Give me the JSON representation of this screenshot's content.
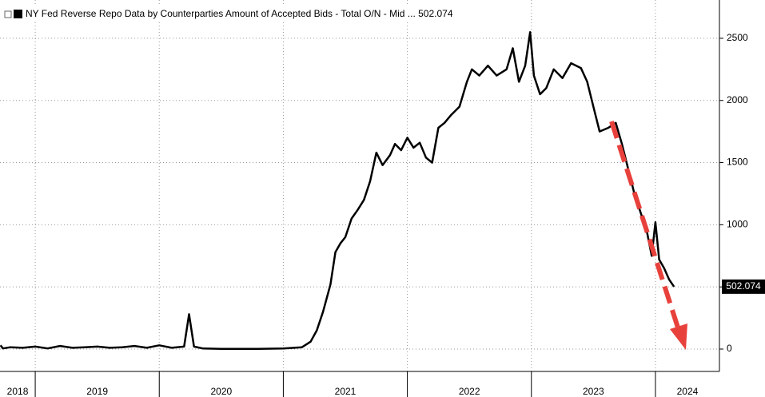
{
  "chart_data": {
    "type": "line",
    "series": [
      {
        "name": "NY Fed Reverse Repo Data by Counterparties Amount of Accepted Bids - Total O/N - Mid ... 502.074",
        "color": "#000000",
        "x": [
          2018.72,
          2018.74,
          2018.8,
          2018.9,
          2019.0,
          2019.1,
          2019.2,
          2019.3,
          2019.4,
          2019.5,
          2019.6,
          2019.7,
          2019.8,
          2019.9,
          2020.0,
          2020.1,
          2020.2,
          2020.24,
          2020.28,
          2020.35,
          2020.5,
          2020.8,
          2021.0,
          2021.15,
          2021.22,
          2021.27,
          2021.32,
          2021.38,
          2021.42,
          2021.46,
          2021.5,
          2021.55,
          2021.6,
          2021.65,
          2021.7,
          2021.75,
          2021.8,
          2021.86,
          2021.9,
          2021.95,
          2022.0,
          2022.05,
          2022.1,
          2022.15,
          2022.2,
          2022.25,
          2022.3,
          2022.35,
          2022.42,
          2022.48,
          2022.52,
          2022.58,
          2022.65,
          2022.72,
          2022.8,
          2022.85,
          2022.9,
          2022.95,
          2022.99,
          2023.02,
          2023.07,
          2023.12,
          2023.18,
          2023.25,
          2023.32,
          2023.4,
          2023.45,
          2023.5,
          2023.55,
          2023.62,
          2023.68,
          2023.73,
          2023.78,
          2023.83,
          2023.88,
          2023.93,
          2023.97,
          2024.0,
          2024.03,
          2024.07,
          2024.11,
          2024.15
        ],
        "values": [
          30,
          5,
          15,
          10,
          20,
          5,
          25,
          10,
          15,
          20,
          10,
          15,
          25,
          10,
          30,
          10,
          20,
          280,
          20,
          5,
          2,
          2,
          5,
          15,
          60,
          150,
          300,
          520,
          780,
          850,
          900,
          1050,
          1120,
          1200,
          1350,
          1580,
          1480,
          1560,
          1650,
          1600,
          1700,
          1620,
          1660,
          1540,
          1500,
          1780,
          1820,
          1880,
          1950,
          2150,
          2250,
          2200,
          2280,
          2200,
          2250,
          2420,
          2150,
          2280,
          2550,
          2200,
          2050,
          2100,
          2250,
          2180,
          2300,
          2260,
          2150,
          1950,
          1750,
          1780,
          1820,
          1650,
          1450,
          1250,
          1100,
          950,
          750,
          1020,
          720,
          650,
          560,
          502.074
        ]
      }
    ],
    "xlim": [
      2018.716,
      2024.516
    ],
    "xticks": [
      {
        "value": 2018.858,
        "label": "2018"
      },
      {
        "value": 2019.5,
        "label": "2019"
      },
      {
        "value": 2020.5,
        "label": "2020"
      },
      {
        "value": 2021.5,
        "label": "2021"
      },
      {
        "value": 2022.5,
        "label": "2022"
      },
      {
        "value": 2023.5,
        "label": "2023"
      },
      {
        "value": 2024.258,
        "label": "2024"
      }
    ],
    "xgrid": [
      2019,
      2020,
      2021,
      2022,
      2023,
      2024
    ],
    "ylim": [
      -180,
      2808
    ],
    "yticks": [
      0,
      500,
      1000,
      1500,
      2000,
      2500
    ],
    "grid": true
  }
}
